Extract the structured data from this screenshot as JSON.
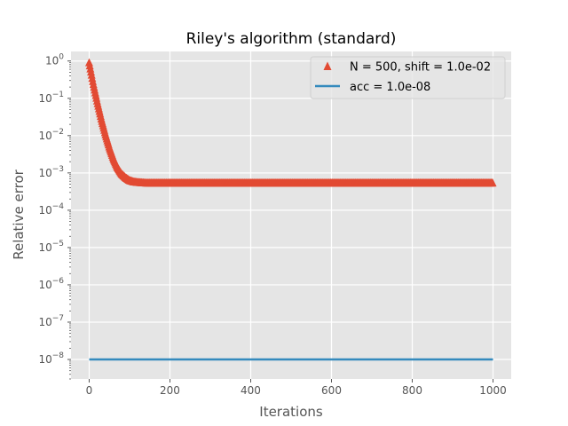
{
  "chart_data": {
    "type": "line",
    "title": "Riley's algorithm (standard)",
    "xlabel": "Iterations",
    "ylabel": "Relative error",
    "yscale": "log",
    "xlim": [
      -45,
      1045
    ],
    "ylim": [
      3e-09,
      1.8
    ],
    "xticks": [
      0,
      200,
      400,
      600,
      800,
      1000
    ],
    "yticks": [
      {
        "base": "10",
        "exp": "0",
        "value": 1
      },
      {
        "base": "10",
        "exp": "−1",
        "value": 0.1
      },
      {
        "base": "10",
        "exp": "−2",
        "value": 0.01
      },
      {
        "base": "10",
        "exp": "−3",
        "value": 0.001
      },
      {
        "base": "10",
        "exp": "−4",
        "value": 0.0001
      },
      {
        "base": "10",
        "exp": "−5",
        "value": 1e-05
      },
      {
        "base": "10",
        "exp": "−6",
        "value": 1e-06
      },
      {
        "base": "10",
        "exp": "−7",
        "value": 1e-07
      },
      {
        "base": "10",
        "exp": "−8",
        "value": 1e-08
      }
    ],
    "grid": true,
    "legend_position": "top-right",
    "series": [
      {
        "name": "N = 500, shift = 1.0e-02",
        "marker": "triangle",
        "color": "#E24A33",
        "x": [
          0,
          10,
          20,
          30,
          40,
          50,
          60,
          70,
          80,
          90,
          100,
          110,
          120,
          130,
          140,
          150,
          200,
          300,
          400,
          500,
          600,
          700,
          800,
          900,
          1000
        ],
        "y": [
          0.9,
          0.25,
          0.08,
          0.028,
          0.011,
          0.0048,
          0.0024,
          0.0014,
          0.00095,
          0.00075,
          0.00063,
          0.00058,
          0.00056,
          0.00055,
          0.00054,
          0.00054,
          0.00054,
          0.00054,
          0.00054,
          0.00054,
          0.00054,
          0.00054,
          0.00054,
          0.00054,
          0.00054
        ]
      },
      {
        "name": "acc = 1.0e-08",
        "marker": "line",
        "color": "#348ABD",
        "x": [
          0,
          1000
        ],
        "y": [
          1e-08,
          1e-08
        ]
      }
    ]
  },
  "colors": {
    "plot_background": "#E5E5E5",
    "grid": "#FFFFFF",
    "series_error": "#E24A33",
    "series_acc": "#348ABD"
  }
}
